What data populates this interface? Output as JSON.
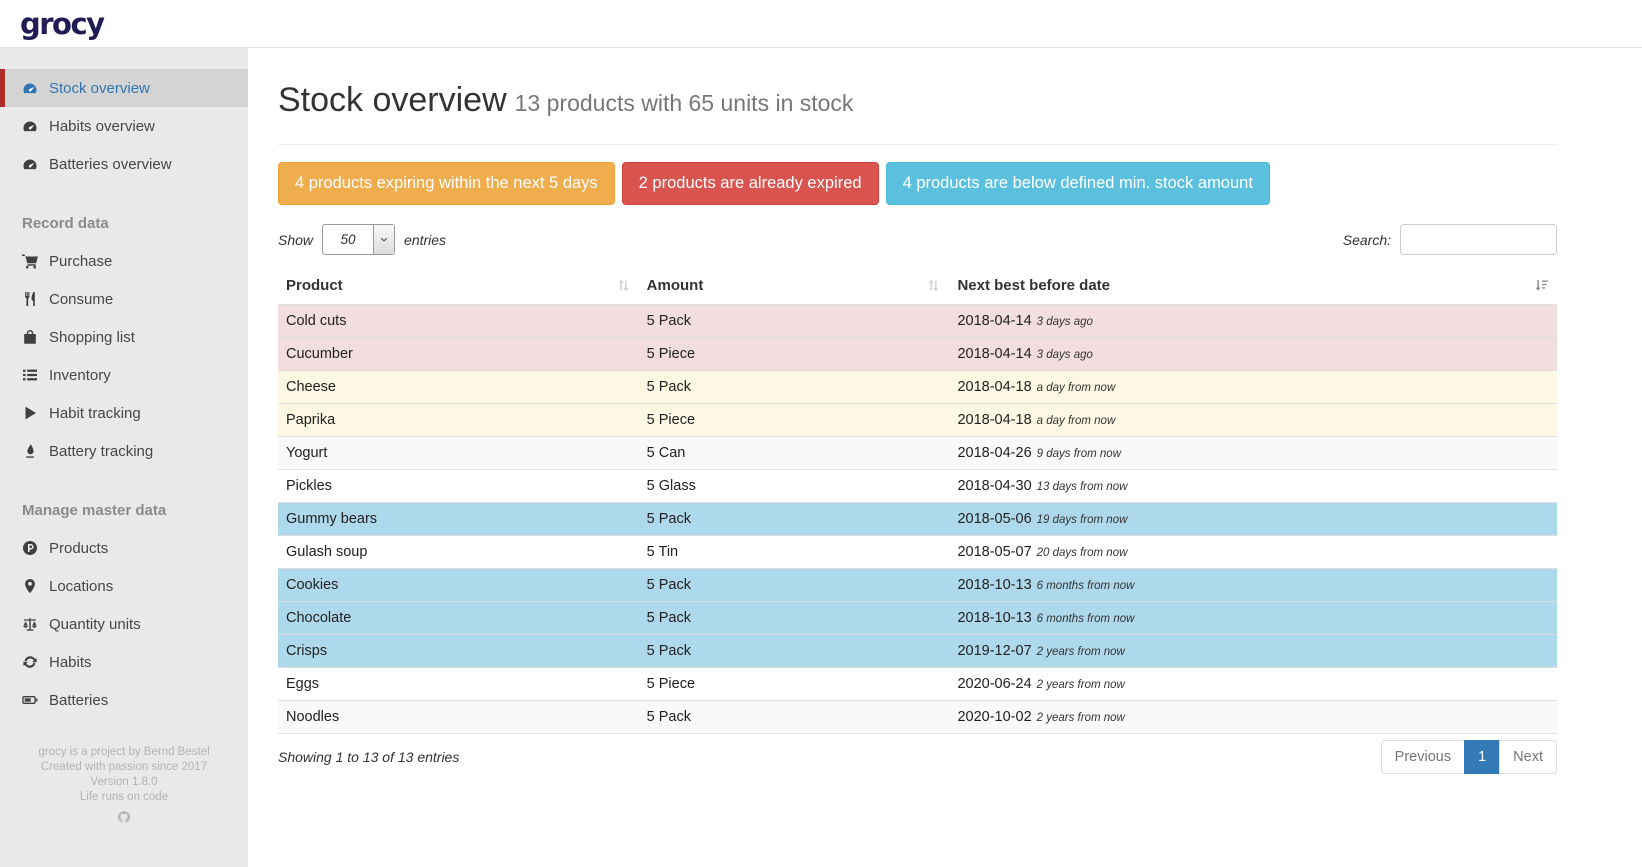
{
  "app": {
    "logo_text": "grocy"
  },
  "sidebar": {
    "sections": [
      {
        "header": null,
        "items": [
          {
            "icon": "gauge-icon",
            "label": "Stock overview",
            "active": true
          },
          {
            "icon": "gauge-icon",
            "label": "Habits overview",
            "active": false
          },
          {
            "icon": "gauge-icon",
            "label": "Batteries overview",
            "active": false
          }
        ]
      },
      {
        "header": "Record data",
        "items": [
          {
            "icon": "cart-icon",
            "label": "Purchase",
            "active": false
          },
          {
            "icon": "utensils-icon",
            "label": "Consume",
            "active": false
          },
          {
            "icon": "shopping-bag-icon",
            "label": "Shopping list",
            "active": false
          },
          {
            "icon": "list-icon",
            "label": "Inventory",
            "active": false
          },
          {
            "icon": "play-icon",
            "label": "Habit tracking",
            "active": false
          },
          {
            "icon": "droplet-icon",
            "label": "Battery tracking",
            "active": false
          }
        ]
      },
      {
        "header": "Manage master data",
        "items": [
          {
            "icon": "product-icon",
            "label": "Products",
            "active": false
          },
          {
            "icon": "location-pin-icon",
            "label": "Locations",
            "active": false
          },
          {
            "icon": "scale-icon",
            "label": "Quantity units",
            "active": false
          },
          {
            "icon": "refresh-icon",
            "label": "Habits",
            "active": false
          },
          {
            "icon": "battery-icon",
            "label": "Batteries",
            "active": false
          }
        ]
      }
    ],
    "footer_lines": [
      "grocy is a project by Bernd Bestel",
      "Created with passion since 2017",
      "Version 1.8.0",
      "Life runs on code"
    ],
    "footer_icon": "github-icon"
  },
  "page": {
    "title": "Stock overview",
    "subtitle": "13 products with 65 units in stock"
  },
  "alerts": [
    {
      "label": "4 products expiring within the next 5 days",
      "color": "#f0ad4e",
      "border": "#eea236"
    },
    {
      "label": "2 products are already expired",
      "color": "#d9534f",
      "border": "#d43f3a"
    },
    {
      "label": "4 products are below defined min. stock amount",
      "color": "#5bc0de",
      "border": "#46b8da"
    }
  ],
  "controls": {
    "show_label": "Show",
    "page_length": "50",
    "entries_label": "entries",
    "search_label": "Search:",
    "search_value": ""
  },
  "table": {
    "columns": [
      {
        "label": "Product",
        "sort_icon": "sort-both-icon"
      },
      {
        "label": "Amount",
        "sort_icon": "sort-both-icon"
      },
      {
        "label": "Next best before date",
        "sort_icon": "sort-amount-icon"
      }
    ],
    "rows": [
      {
        "product": "Cold cuts",
        "amount": "5 Pack",
        "date": "2018-04-14",
        "note": "3 days ago",
        "status": "expired"
      },
      {
        "product": "Cucumber",
        "amount": "5 Piece",
        "date": "2018-04-14",
        "note": "3 days ago",
        "status": "expired"
      },
      {
        "product": "Cheese",
        "amount": "5 Pack",
        "date": "2018-04-18",
        "note": "a day from now",
        "status": "expiring"
      },
      {
        "product": "Paprika",
        "amount": "5 Piece",
        "date": "2018-04-18",
        "note": "a day from now",
        "status": "expiring"
      },
      {
        "product": "Yogurt",
        "amount": "5 Can",
        "date": "2018-04-26",
        "note": "9 days from now",
        "status": "stripe"
      },
      {
        "product": "Pickles",
        "amount": "5 Glass",
        "date": "2018-04-30",
        "note": "13 days from now",
        "status": "none"
      },
      {
        "product": "Gummy bears",
        "amount": "5 Pack",
        "date": "2018-05-06",
        "note": "19 days from now",
        "status": "below-min"
      },
      {
        "product": "Gulash soup",
        "amount": "5 Tin",
        "date": "2018-05-07",
        "note": "20 days from now",
        "status": "none"
      },
      {
        "product": "Cookies",
        "amount": "5 Pack",
        "date": "2018-10-13",
        "note": "6 months from now",
        "status": "below-min"
      },
      {
        "product": "Chocolate",
        "amount": "5 Pack",
        "date": "2018-10-13",
        "note": "6 months from now",
        "status": "below-min"
      },
      {
        "product": "Crisps",
        "amount": "5 Pack",
        "date": "2019-12-07",
        "note": "2 years from now",
        "status": "below-min"
      },
      {
        "product": "Eggs",
        "amount": "5 Piece",
        "date": "2020-06-24",
        "note": "2 years from now",
        "status": "none"
      },
      {
        "product": "Noodles",
        "amount": "5 Pack",
        "date": "2020-10-02",
        "note": "2 years from now",
        "status": "stripe"
      }
    ]
  },
  "table_footer": {
    "info": "Showing 1 to 13 of 13 entries",
    "pagination": [
      {
        "label": "Previous",
        "active": false
      },
      {
        "label": "1",
        "active": true
      },
      {
        "label": "Next",
        "active": false
      }
    ]
  },
  "colors": {
    "row_expired": "#f2dede",
    "row_expiring": "#fcf8e3",
    "row_below_min": "#aed9ec",
    "row_stripe": "#f9f9f9",
    "active_page": "#337ab7",
    "accent_red": "#b02b27"
  }
}
